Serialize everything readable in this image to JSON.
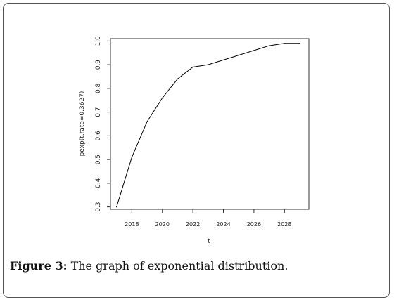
{
  "chart_data": {
    "type": "line",
    "xlabel": "t",
    "ylabel": "pexp(t,rate=0.3627)",
    "xlim": [
      2016.6,
      2029.6
    ],
    "ylim": [
      0.29,
      1.01
    ],
    "xticks": [
      2018,
      2020,
      2022,
      2024,
      2026,
      2028
    ],
    "yticks": [
      0.3,
      0.4,
      0.5,
      0.6,
      0.7,
      0.8,
      0.9,
      1.0
    ],
    "ytick_labels": [
      "0.3",
      "0.4",
      "0.5",
      "0.6",
      "0.7",
      "0.8",
      "0.9",
      "1.0"
    ],
    "grid": false,
    "line_color": "#000000",
    "series": [
      {
        "x": [
          2017,
          2018,
          2019,
          2020,
          2021,
          2022,
          2023,
          2024,
          2025,
          2026,
          2027,
          2028,
          2029
        ],
        "values": [
          0.3,
          0.51,
          0.66,
          0.76,
          0.84,
          0.89,
          0.9,
          0.92,
          0.94,
          0.96,
          0.98,
          0.99,
          0.99
        ]
      }
    ]
  },
  "caption": {
    "label": "Figure 3:",
    "text": " The graph of exponential distribution."
  }
}
